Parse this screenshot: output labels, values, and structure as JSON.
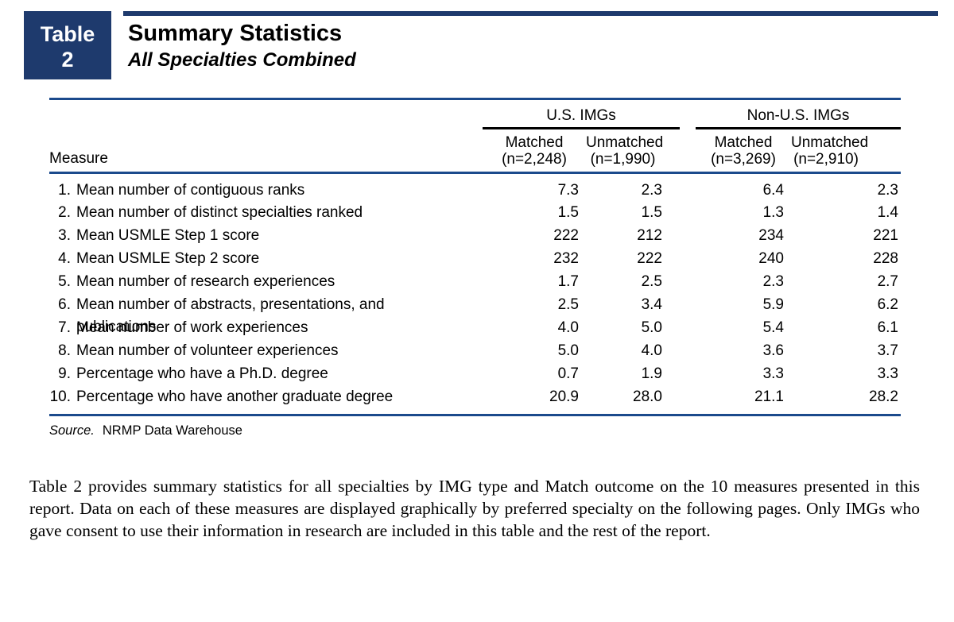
{
  "colors": {
    "navy": "#1e3a6d",
    "rule-blue": "#1b4a8c",
    "ink": "#000000"
  },
  "header": {
    "table_word": "Table",
    "table_number": "2",
    "title": "Summary Statistics",
    "subtitle": "All Specialties Combined"
  },
  "table": {
    "measure_header": "Measure",
    "groups": [
      {
        "label": "U.S. IMGs"
      },
      {
        "label": "Non-U.S. IMGs"
      }
    ],
    "columns": [
      {
        "line1": "Matched",
        "line2": "(n=2,248)"
      },
      {
        "line1": "Unmatched",
        "line2": "(n=1,990)"
      },
      {
        "line1": "Matched",
        "line2": "(n=3,269)"
      },
      {
        "line1": "Unmatched",
        "line2": "(n=2,910)"
      }
    ],
    "rows": [
      {
        "num": "1.",
        "label": "Mean number of contiguous ranks",
        "values": [
          "7.3",
          "2.3",
          "6.4",
          "2.3"
        ]
      },
      {
        "num": "2.",
        "label": "Mean number of distinct specialties ranked",
        "values": [
          "1.5",
          "1.5",
          "1.3",
          "1.4"
        ]
      },
      {
        "num": "3.",
        "label": "Mean USMLE Step 1 score",
        "values": [
          "222",
          "212",
          "234",
          "221"
        ]
      },
      {
        "num": "4.",
        "label": "Mean USMLE Step 2 score",
        "values": [
          "232",
          "222",
          "240",
          "228"
        ]
      },
      {
        "num": "5.",
        "label": "Mean number of research experiences",
        "values": [
          "1.7",
          "2.5",
          "2.3",
          "2.7"
        ]
      },
      {
        "num": "6.",
        "label": "Mean number of abstracts, presentations, and publications",
        "values": [
          "2.5",
          "3.4",
          "5.9",
          "6.2"
        ]
      },
      {
        "num": "7.",
        "label": "Mean number of work experiences",
        "values": [
          "4.0",
          "5.0",
          "5.4",
          "6.1"
        ]
      },
      {
        "num": "8.",
        "label": "Mean number of volunteer experiences",
        "values": [
          "5.0",
          "4.0",
          "3.6",
          "3.7"
        ]
      },
      {
        "num": "9.",
        "label": "Percentage who have a Ph.D. degree",
        "values": [
          "0.7",
          "1.9",
          "3.3",
          "3.3"
        ]
      },
      {
        "num": "10.",
        "label": "Percentage who have another graduate degree",
        "values": [
          "20.9",
          "28.0",
          "21.1",
          "28.2"
        ]
      }
    ],
    "source_label": "Source.",
    "source_text": "NRMP Data Warehouse"
  },
  "body_paragraph": "Table 2 provides summary statistics for all specialties by IMG type and Match outcome on the 10 measures presented in this report. Data on each of these measures are displayed graphically by preferred specialty on the following pages. Only IMGs who gave consent to use their information in research are included in this table and the rest of the report."
}
